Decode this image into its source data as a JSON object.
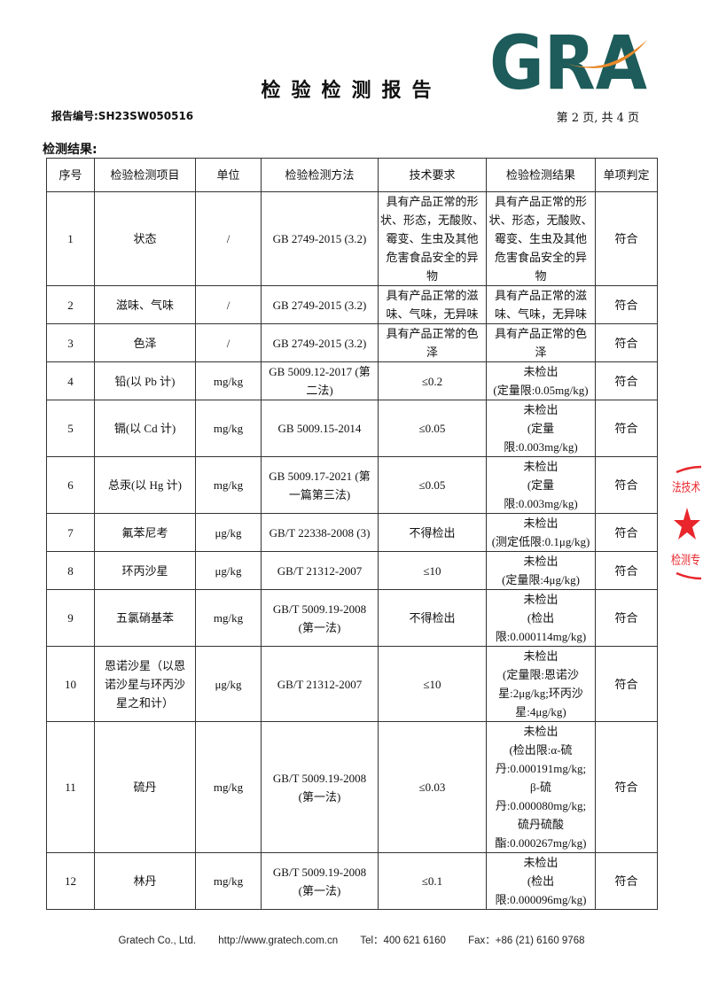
{
  "header": {
    "title": "检验检测报告",
    "report_number": "报告编号:SH23SW050516",
    "page_info": "第 2 页, 共 4 页",
    "logo_text": "GRA",
    "logo_colors": {
      "teal": "#1d5c5a",
      "orange": "#e8892a"
    }
  },
  "section_title": "检测结果:",
  "table": {
    "columns": [
      "序号",
      "检验检测项目",
      "单位",
      "检验检测方法",
      "技术要求",
      "检验检测结果",
      "单项判定"
    ],
    "rows": [
      [
        "1",
        "状态",
        "/",
        "GB 2749-2015 (3.2)",
        "具有产品正常的形\n状、形态，无酸败、\n霉变、生虫及其他\n危害食品安全的异\n物",
        "具有产品正常的形\n状、形态，无酸败、\n霉变、生虫及其他\n危害食品安全的异\n物",
        "符合"
      ],
      [
        "2",
        "滋味、气味",
        "/",
        "GB 2749-2015 (3.2)",
        "具有产品正常的滋\n味、气味，无异味",
        "具有产品正常的滋\n味、气味，无异味",
        "符合"
      ],
      [
        "3",
        "色泽",
        "/",
        "GB 2749-2015 (3.2)",
        "具有产品正常的色\n泽",
        "具有产品正常的色\n泽",
        "符合"
      ],
      [
        "4",
        "铅(以 Pb 计)",
        "mg/kg",
        "GB 5009.12-2017 (第\n二法)",
        "≤0.2",
        "未检出\n(定量限:0.05mg/kg)",
        "符合"
      ],
      [
        "5",
        "镉(以 Cd 计)",
        "mg/kg",
        "GB 5009.15-2014",
        "≤0.05",
        "未检出\n(定量\n限:0.003mg/kg)",
        "符合"
      ],
      [
        "6",
        "总汞(以 Hg 计)",
        "mg/kg",
        "GB 5009.17-2021 (第\n一篇第三法)",
        "≤0.05",
        "未检出\n(定量\n限:0.003mg/kg)",
        "符合"
      ],
      [
        "7",
        "氟苯尼考",
        "μg/kg",
        "GB/T 22338-2008 (3)",
        "不得检出",
        "未检出\n(测定低限:0.1μg/kg)",
        "符合"
      ],
      [
        "8",
        "环丙沙星",
        "μg/kg",
        "GB/T 21312-2007",
        "≤10",
        "未检出\n(定量限:4μg/kg)",
        "符合"
      ],
      [
        "9",
        "五氯硝基苯",
        "mg/kg",
        "GB/T 5009.19-2008\n(第一法)",
        "不得检出",
        "未检出\n(检出\n限:0.000114mg/kg)",
        "符合"
      ],
      [
        "10",
        "恩诺沙星（以恩\n诺沙星与环丙沙\n星之和计）",
        "μg/kg",
        "GB/T 21312-2007",
        "≤10",
        "未检出\n(定量限:恩诺沙\n星:2μg/kg;环丙沙\n星:4μg/kg)",
        "符合"
      ],
      [
        "11",
        "硫丹",
        "mg/kg",
        "GB/T 5009.19-2008\n(第一法)",
        "≤0.03",
        "未检出\n(检出限:α-硫\n丹:0.000191mg/kg;\nβ-硫\n丹:0.000080mg/kg;\n硫丹硫酸\n酯:0.000267mg/kg)",
        "符合"
      ],
      [
        "12",
        "林丹",
        "mg/kg",
        "GB/T 5009.19-2008\n(第一法)",
        "≤0.1",
        "未检出\n(检出\n限:0.000096mg/kg)",
        "符合"
      ]
    ]
  },
  "footer": {
    "company": "Gratech Co., Ltd.",
    "website": "http://www.gratech.com.cn",
    "tel": "Tel：400 621 6160",
    "fax": "Fax：+86 (21) 6160 9768"
  },
  "stamp": {
    "text_top": "技术",
    "text_bottom": "检测专",
    "color": "#e8262b"
  }
}
